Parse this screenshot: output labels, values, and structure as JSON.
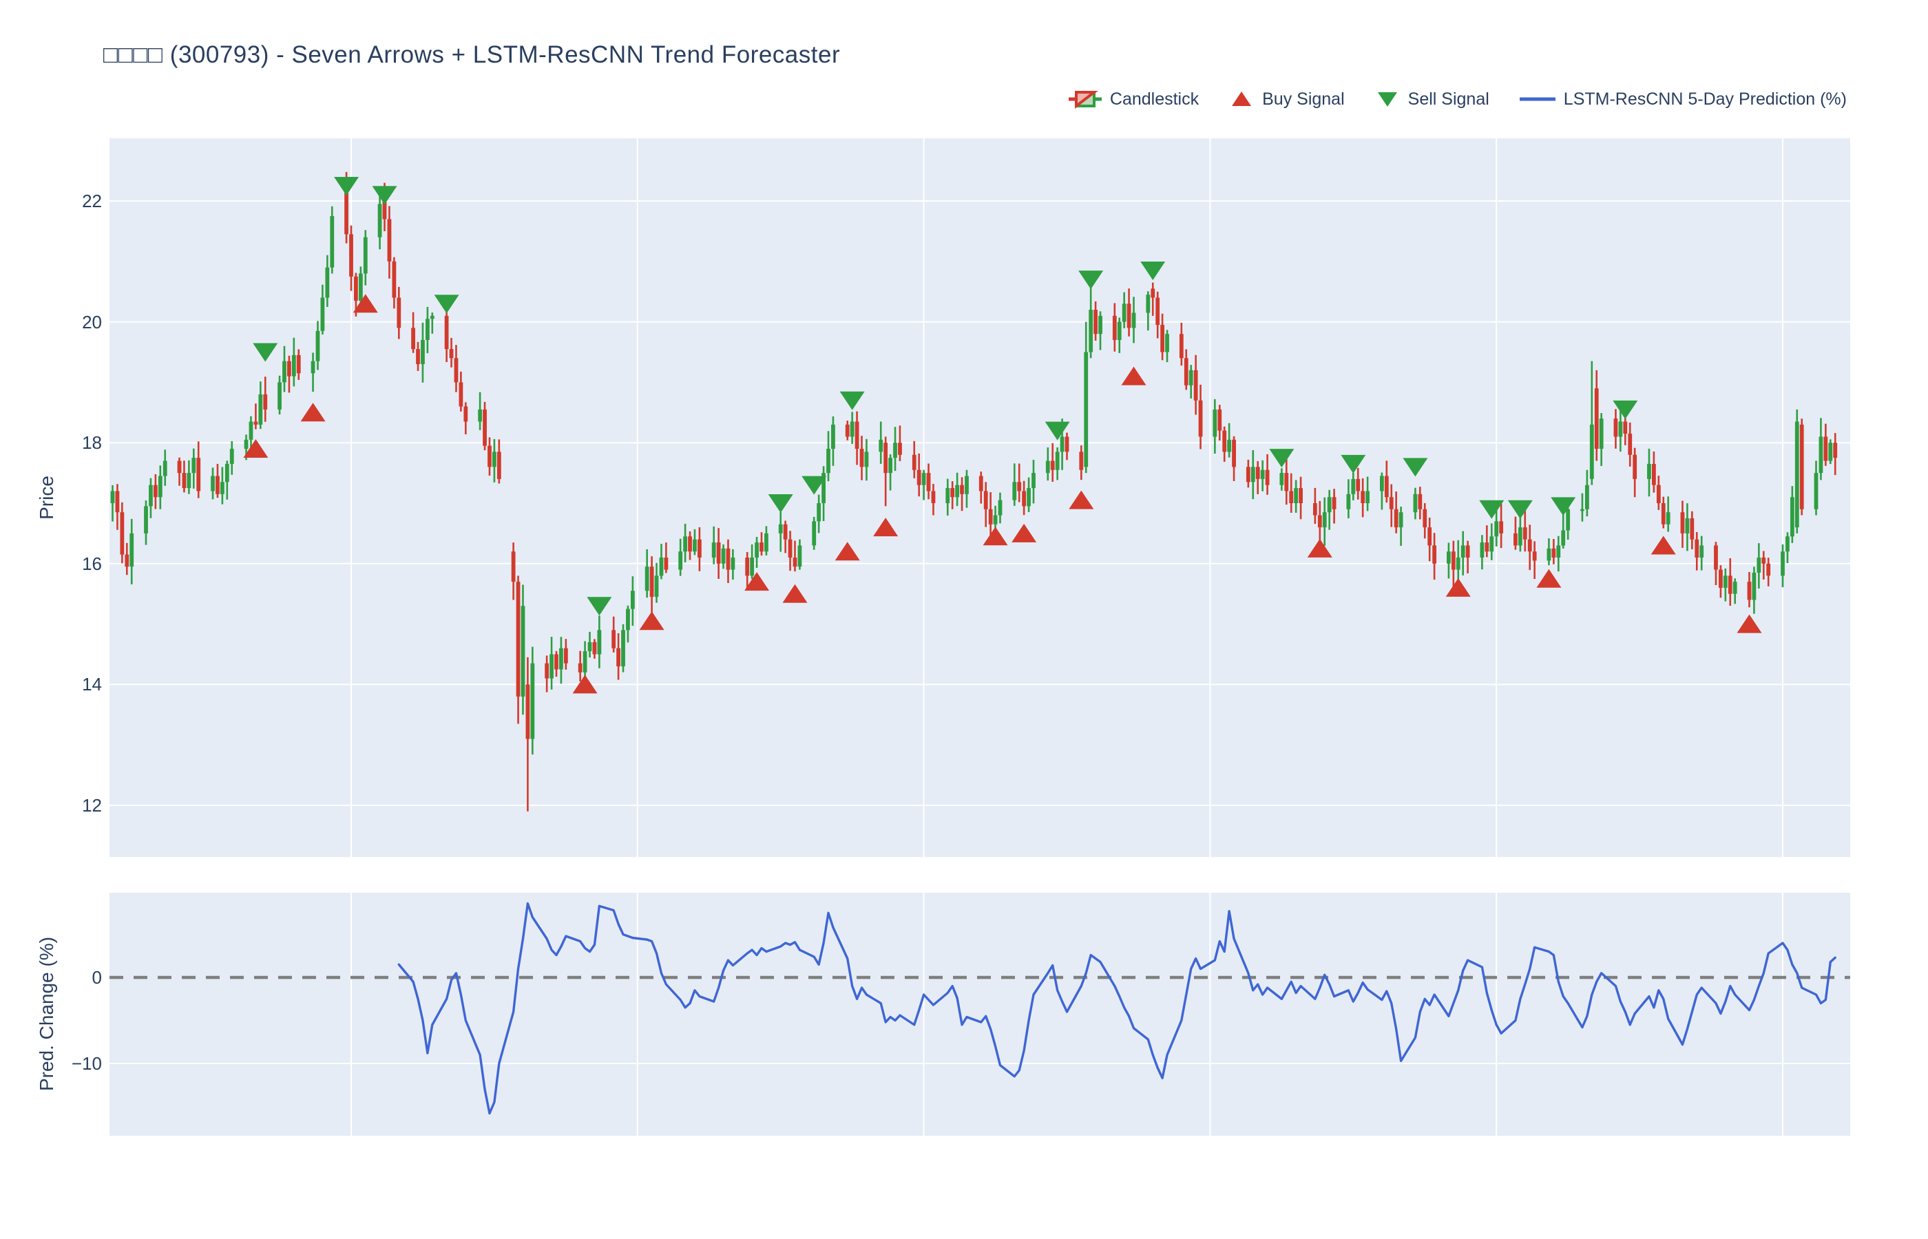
{
  "title": "□□□□ (300793) - Seven Arrows + LSTM-ResCNN Trend Forecaster",
  "legend": {
    "items": [
      {
        "id": "candlestick",
        "label": "Candlestick",
        "glyph": "candlestick-glyph"
      },
      {
        "id": "buy",
        "label": "Buy Signal",
        "glyph": "triangle-up-glyph"
      },
      {
        "id": "sell",
        "label": "Sell Signal",
        "glyph": "triangle-down-glyph"
      },
      {
        "id": "prediction",
        "label": "LSTM-ResCNN 5-Day Prediction (%)",
        "glyph": "line-glyph"
      }
    ]
  },
  "price_axis": {
    "label": "Price",
    "ticks": [
      "22",
      "20",
      "18",
      "16",
      "14",
      "12"
    ],
    "tick_values": [
      22,
      20,
      18,
      16,
      14,
      12
    ]
  },
  "pred_axis": {
    "label": "Pred. Change (%)",
    "ticks": [
      "0",
      "−10"
    ],
    "tick_values": [
      0,
      -10
    ]
  },
  "colors": {
    "up": "#2f9e41",
    "down": "#d23a2c",
    "up_light": "#bcd8b8",
    "down_light": "#f0b4aa",
    "prediction": "#3f66d4",
    "zero_line": "#7f7f7f",
    "plot_bg": "#e5ecf6",
    "grid": "#ffffff",
    "text": "#2a3f5f"
  },
  "chart_data": [
    {
      "type": "candlestick",
      "name": "Candlestick",
      "x_unit": "trading-day index (weekend gaps rendered, no date tick labels shown)",
      "ylabel": "Price",
      "ylim": [
        11.1,
        23.1
      ],
      "yticks": [
        12,
        14,
        16,
        18,
        20,
        22
      ],
      "vgrid_calendar_days": [
        50,
        110,
        170,
        230,
        290,
        350
      ],
      "closes": [
        17.2,
        16.85,
        16.15,
        15.95,
        16.5,
        16.95,
        17.3,
        17.1,
        17.45,
        17.7,
        17.5,
        17.25,
        17.5,
        17.75,
        17.2,
        17.45,
        17.15,
        17.35,
        17.65,
        17.9,
        18.05,
        18.35,
        18.3,
        18.8,
        18.55,
        19.0,
        19.35,
        19.1,
        19.45,
        19.15,
        19.35,
        19.85,
        20.4,
        20.9,
        21.75,
        21.45,
        20.75,
        20.35,
        20.8,
        21.4,
        21.95,
        21.7,
        21.0,
        20.4,
        19.9,
        19.55,
        19.3,
        19.7,
        20.05,
        20.1,
        19.55,
        19.4,
        19.0,
        18.6,
        18.35,
        18.55,
        17.95,
        17.6,
        17.85,
        17.4,
        15.7,
        13.8,
        15.3,
        13.1,
        14.35,
        14.1,
        14.5,
        14.25,
        14.6,
        14.35,
        14.2,
        14.55,
        14.7,
        14.5,
        14.9,
        14.6,
        14.3,
        14.9,
        15.25,
        15.55,
        15.95,
        15.45,
        15.8,
        16.1,
        15.9,
        16.2,
        16.45,
        16.2,
        16.4,
        16.1,
        16.35,
        16.0,
        16.25,
        15.9,
        16.1,
        15.8,
        16.1,
        16.35,
        16.2,
        16.5,
        16.65,
        16.4,
        16.1,
        15.95,
        16.3,
        16.7,
        17.0,
        17.5,
        17.9,
        18.3,
        18.1,
        18.35,
        17.9,
        17.6,
        17.85,
        18.05,
        17.5,
        17.75,
        18.0,
        17.8,
        17.55,
        17.3,
        17.5,
        17.2,
        17.0,
        17.25,
        17.1,
        17.3,
        17.15,
        17.45,
        17.2,
        16.9,
        16.65,
        16.8,
        17.05,
        17.35,
        17.2,
        16.95,
        17.25,
        17.5,
        17.7,
        17.55,
        17.85,
        18.1,
        17.85,
        17.55,
        19.5,
        20.2,
        19.8,
        20.1,
        19.7,
        20.0,
        20.3,
        19.9,
        20.15,
        20.45,
        20.4,
        19.95,
        19.5,
        19.8,
        19.4,
        18.95,
        19.2,
        18.7,
        18.1,
        18.55,
        18.2,
        17.85,
        18.05,
        17.6,
        17.35,
        17.6,
        17.4,
        17.55,
        17.3,
        17.5,
        17.2,
        17.0,
        17.25,
        17.0,
        16.8,
        16.6,
        16.85,
        17.1,
        16.9,
        17.15,
        17.4,
        17.2,
        17.0,
        17.2,
        17.45,
        17.1,
        16.9,
        16.6,
        16.85,
        17.15,
        16.9,
        16.6,
        16.3,
        16.0,
        16.2,
        15.9,
        16.1,
        16.3,
        16.1,
        16.35,
        16.2,
        16.45,
        16.7,
        16.5,
        16.3,
        16.6,
        16.4,
        16.2,
        16.05,
        16.25,
        16.1,
        16.3,
        16.55,
        16.9,
        16.9,
        17.3,
        18.3,
        17.9,
        18.4,
        18.1,
        18.35,
        18.15,
        17.8,
        17.4,
        17.65,
        17.3,
        17.0,
        16.65,
        16.85,
        16.5,
        16.75,
        16.4,
        16.1,
        16.3,
        15.9,
        15.6,
        15.8,
        15.5,
        15.7,
        15.4,
        15.85,
        16.1,
        16.0,
        15.8,
        16.2,
        16.45,
        17.1,
        18.35,
        16.9,
        17.5,
        18.1,
        17.7,
        18.0,
        17.75
      ],
      "ohlc_overrides": {
        "35": [
          22.2,
          22.48,
          21.3,
          21.45
        ],
        "41": [
          22.1,
          22.3,
          21.5,
          21.7
        ],
        "60": [
          16.2,
          16.35,
          15.4,
          15.7
        ],
        "61": [
          15.7,
          15.8,
          13.35,
          13.8
        ],
        "62": [
          13.8,
          15.65,
          13.5,
          15.3
        ],
        "63": [
          14.0,
          14.45,
          11.9,
          13.1
        ],
        "116": [
          18.0,
          18.1,
          16.95,
          17.5
        ],
        "146": [
          17.6,
          20.0,
          17.5,
          19.5
        ],
        "147": [
          19.5,
          20.6,
          19.4,
          20.2
        ],
        "156": [
          20.55,
          20.65,
          20.1,
          20.4
        ],
        "222": [
          17.4,
          19.35,
          17.3,
          18.3
        ],
        "223": [
          18.9,
          19.2,
          17.7,
          17.9
        ],
        "253": [
          16.6,
          18.55,
          16.5,
          18.35
        ],
        "254": [
          18.3,
          18.4,
          16.8,
          16.9
        ]
      },
      "buy_signals": [
        [
          22,
          17.9
        ],
        [
          30,
          18.5
        ],
        [
          39,
          20.3
        ],
        [
          71,
          14.0
        ],
        [
          81,
          15.05
        ],
        [
          97,
          15.7
        ],
        [
          103,
          15.5
        ],
        [
          110,
          16.2
        ],
        [
          116,
          16.6
        ],
        [
          133,
          16.45
        ],
        [
          137,
          16.5
        ],
        [
          145,
          17.05
        ],
        [
          154,
          19.1
        ],
        [
          181,
          16.25
        ],
        [
          202,
          15.6
        ],
        [
          215,
          15.75
        ],
        [
          233,
          16.3
        ],
        [
          245,
          15.0
        ]
      ],
      "sell_signals": [
        [
          24,
          19.5
        ],
        [
          35,
          22.25
        ],
        [
          41,
          22.1
        ],
        [
          50,
          20.3
        ],
        [
          74,
          15.3
        ],
        [
          100,
          17.0
        ],
        [
          105,
          17.3
        ],
        [
          111,
          18.7
        ],
        [
          142,
          18.2
        ],
        [
          147,
          20.7
        ],
        [
          156,
          20.85
        ],
        [
          175,
          17.75
        ],
        [
          186,
          17.65
        ],
        [
          195,
          17.6
        ],
        [
          207,
          16.9
        ],
        [
          211,
          16.9
        ],
        [
          218,
          16.95
        ],
        [
          227,
          18.55
        ]
      ]
    },
    {
      "type": "line",
      "name": "LSTM-ResCNN 5-Day Prediction (%)",
      "ylabel": "Pred. Change (%)",
      "ylim": [
        -18.5,
        9.9
      ],
      "yticks": [
        0,
        -10
      ],
      "zero_line_style": "dashed",
      "start_trading_day": 44,
      "values": [
        1.5,
        -0.5,
        -2.5,
        -5.0,
        -8.8,
        -5.5,
        -2.5,
        -0.3,
        0.5,
        -2.0,
        -5.0,
        -9.0,
        -13.0,
        -15.8,
        -14.5,
        -10.0,
        -4.0,
        1.0,
        4.5,
        8.6,
        7.0,
        4.5,
        3.2,
        2.6,
        3.6,
        4.8,
        4.2,
        3.4,
        3.0,
        3.8,
        8.3,
        7.8,
        6.2,
        5.0,
        4.8,
        4.6,
        4.4,
        4.2,
        2.8,
        0.5,
        -0.8,
        -2.6,
        -3.5,
        -3.0,
        -1.5,
        -2.2,
        -2.8,
        -1.2,
        0.8,
        2.0,
        1.4,
        2.8,
        3.2,
        2.6,
        3.4,
        3.0,
        3.6,
        4.0,
        3.8,
        4.1,
        3.2,
        2.4,
        1.5,
        4.0,
        7.5,
        5.8,
        2.2,
        -1.0,
        -2.5,
        -1.2,
        -2.0,
        -3.0,
        -5.2,
        -4.6,
        -5.0,
        -4.4,
        -5.5,
        -3.8,
        -2.0,
        -2.6,
        -3.2,
        -1.8,
        -1.0,
        -2.4,
        -5.5,
        -4.6,
        -5.2,
        -4.5,
        -6.0,
        -8.0,
        -10.2,
        -11.5,
        -10.8,
        -8.5,
        -5.0,
        -2.0,
        0.5,
        1.4,
        -1.5,
        -2.8,
        -4.0,
        -1.0,
        0.5,
        2.6,
        2.2,
        1.8,
        -1.0,
        -2.2,
        -3.5,
        -4.5,
        -5.9,
        -7.2,
        -9.0,
        -10.5,
        -11.7,
        -9.0,
        -5.0,
        -2.0,
        1.0,
        2.2,
        1.0,
        2.0,
        4.2,
        3.0,
        7.7,
        4.5,
        0.5,
        -1.5,
        -0.8,
        -2.0,
        -1.2,
        -2.5,
        -1.5,
        -0.5,
        -1.8,
        -1.0,
        -2.5,
        -1.2,
        0.3,
        -0.8,
        -2.2,
        -1.5,
        -2.8,
        -1.8,
        -0.6,
        -1.4,
        -2.6,
        -1.6,
        -3.0,
        -6.0,
        -9.7,
        -7.0,
        -4.0,
        -2.5,
        -3.2,
        -2.0,
        -4.5,
        -3.0,
        -1.5,
        0.8,
        2.0,
        1.2,
        -1.8,
        -3.8,
        -5.5,
        -6.5,
        -5.0,
        -2.5,
        -0.8,
        1.0,
        3.5,
        3.0,
        2.6,
        -0.5,
        -2.2,
        -3.0,
        -5.8,
        -4.5,
        -2.0,
        -0.5,
        0.5,
        -1.0,
        -2.8,
        -4.0,
        -5.5,
        -4.2,
        -2.2,
        -3.5,
        -1.5,
        -2.5,
        -4.8,
        -7.8,
        -6.0,
        -4.0,
        -2.0,
        -1.2,
        -3.0,
        -4.2,
        -2.8,
        -1.0,
        -2.0,
        -3.8,
        -2.6,
        -1.0,
        0.5,
        2.8,
        4.0,
        3.2,
        1.5,
        0.5,
        -1.2,
        -2.0,
        -3.0,
        -2.6,
        1.8,
        2.3
      ]
    }
  ]
}
